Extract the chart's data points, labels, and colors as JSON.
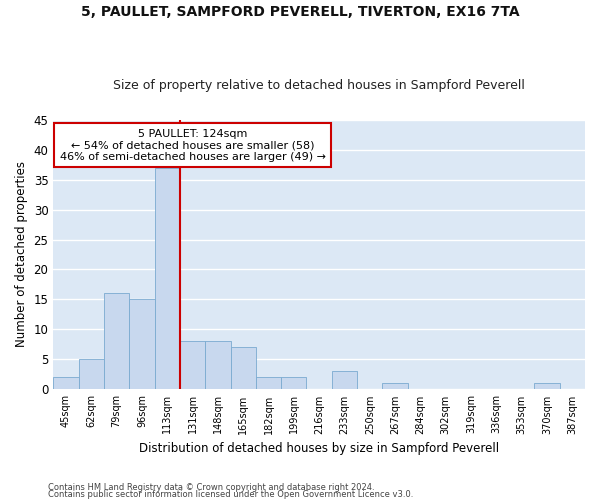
{
  "title1": "5, PAULLET, SAMPFORD PEVERELL, TIVERTON, EX16 7TA",
  "title2": "Size of property relative to detached houses in Sampford Peverell",
  "xlabel": "Distribution of detached houses by size in Sampford Peverell",
  "ylabel": "Number of detached properties",
  "bar_labels": [
    "45sqm",
    "62sqm",
    "79sqm",
    "96sqm",
    "113sqm",
    "131sqm",
    "148sqm",
    "165sqm",
    "182sqm",
    "199sqm",
    "216sqm",
    "233sqm",
    "250sqm",
    "267sqm",
    "284sqm",
    "302sqm",
    "319sqm",
    "336sqm",
    "353sqm",
    "370sqm",
    "387sqm"
  ],
  "bar_values": [
    2,
    5,
    16,
    15,
    37,
    8,
    8,
    7,
    2,
    2,
    0,
    3,
    0,
    1,
    0,
    0,
    0,
    0,
    0,
    1,
    0
  ],
  "bar_color": "#c8d8ee",
  "bar_edge_color": "#7aaad0",
  "vline_x": 4.5,
  "vline_color": "#cc0000",
  "annotation_text": "5 PAULLET: 124sqm\n← 54% of detached houses are smaller (58)\n46% of semi-detached houses are larger (49) →",
  "annotation_box_color": "#ffffff",
  "annotation_box_edge": "#cc0000",
  "ylim": [
    0,
    45
  ],
  "yticks": [
    0,
    5,
    10,
    15,
    20,
    25,
    30,
    35,
    40,
    45
  ],
  "bg_color": "#dce8f5",
  "grid_color": "#ffffff",
  "fig_bg_color": "#ffffff",
  "footer1": "Contains HM Land Registry data © Crown copyright and database right 2024.",
  "footer2": "Contains public sector information licensed under the Open Government Licence v3.0."
}
